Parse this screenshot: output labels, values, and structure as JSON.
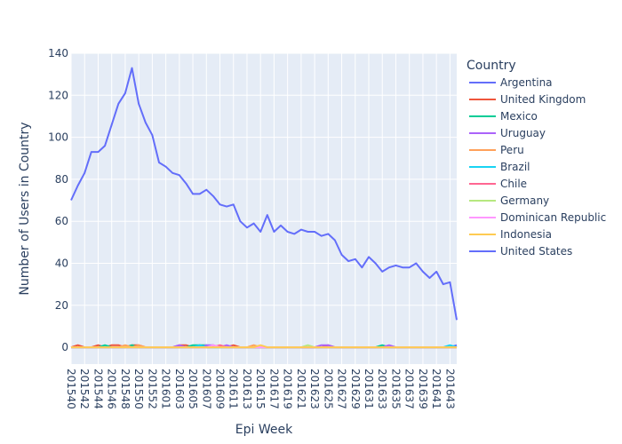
{
  "chart_data": {
    "type": "line",
    "xlabel": "Epi Week",
    "ylabel": "Number of Users in Country",
    "ylim": [
      -8,
      140
    ],
    "yticks": [
      0,
      20,
      40,
      60,
      80,
      100,
      120,
      140
    ],
    "grid": true,
    "legend_title": "Country",
    "legend_position": "right",
    "x": [
      "201540",
      "201541",
      "201542",
      "201543",
      "201544",
      "201545",
      "201546",
      "201547",
      "201548",
      "201549",
      "201550",
      "201551",
      "201552",
      "201553",
      "201601",
      "201602",
      "201603",
      "201604",
      "201605",
      "201606",
      "201607",
      "201608",
      "201609",
      "201610",
      "201611",
      "201612",
      "201613",
      "201614",
      "201615",
      "201616",
      "201617",
      "201618",
      "201619",
      "201620",
      "201621",
      "201622",
      "201623",
      "201624",
      "201625",
      "201626",
      "201627",
      "201628",
      "201629",
      "201630",
      "201631",
      "201632",
      "201633",
      "201634",
      "201635",
      "201636",
      "201637",
      "201638",
      "201639",
      "201640",
      "201641",
      "201642",
      "201643",
      "201644"
    ],
    "xtick_labels": [
      "201540",
      "201542",
      "201544",
      "201546",
      "201548",
      "201550",
      "201552",
      "201601",
      "201603",
      "201605",
      "201607",
      "201609",
      "201611",
      "201613",
      "201615",
      "201617",
      "201619",
      "201621",
      "201623",
      "201625",
      "201627",
      "201629",
      "201631",
      "201633",
      "201635",
      "201637",
      "201639",
      "201641",
      "201643"
    ],
    "series": [
      {
        "name": "Argentina",
        "color": "#636efa",
        "values": [
          0,
          0,
          0,
          0,
          0,
          0,
          0,
          0,
          0,
          0,
          0,
          0,
          0,
          0,
          0,
          0,
          0,
          0,
          0,
          0,
          0,
          0,
          0,
          0,
          0,
          0,
          0,
          0,
          0,
          0,
          0,
          0,
          0,
          0,
          0,
          0,
          0,
          0,
          0,
          0,
          0,
          0,
          0,
          0,
          0,
          0,
          0,
          0,
          0,
          0,
          0,
          0,
          0,
          0,
          0,
          0,
          0,
          1
        ]
      },
      {
        "name": "United Kingdom",
        "color": "#EF553B",
        "values": [
          0,
          1,
          0,
          0,
          1,
          0,
          1,
          1,
          0,
          1,
          1,
          0,
          0,
          0,
          0,
          0,
          1,
          1,
          0,
          1,
          0,
          1,
          0,
          0,
          1,
          0,
          0,
          0,
          0,
          0,
          0,
          0,
          0,
          0,
          0,
          0,
          0,
          0,
          1,
          0,
          0,
          0,
          0,
          0,
          0,
          0,
          0,
          0,
          0,
          0,
          0,
          0,
          0,
          0,
          0,
          0,
          0,
          0
        ]
      },
      {
        "name": "Mexico",
        "color": "#00cc96",
        "values": [
          0,
          0,
          0,
          0,
          0,
          1,
          0,
          0,
          0,
          1,
          0,
          0,
          0,
          0,
          0,
          0,
          0,
          0,
          1,
          1,
          1,
          0,
          0,
          0,
          0,
          0,
          0,
          0,
          0,
          0,
          0,
          0,
          0,
          0,
          0,
          0,
          0,
          0,
          0,
          0,
          0,
          0,
          0,
          0,
          0,
          0,
          1,
          0,
          0,
          0,
          0,
          0,
          0,
          0,
          0,
          0,
          0,
          0
        ]
      },
      {
        "name": "Uruguay",
        "color": "#ab63fa",
        "values": [
          0,
          0,
          0,
          0,
          0,
          0,
          0,
          0,
          0,
          0,
          0,
          0,
          0,
          0,
          0,
          0,
          1,
          0,
          0,
          0,
          1,
          1,
          0,
          1,
          0,
          0,
          0,
          0,
          0,
          0,
          0,
          0,
          0,
          0,
          0,
          0,
          0,
          1,
          1,
          0,
          0,
          0,
          0,
          0,
          0,
          0,
          0,
          1,
          0,
          0,
          0,
          0,
          0,
          0,
          0,
          0,
          0,
          0
        ]
      },
      {
        "name": "Peru",
        "color": "#FFA15A",
        "values": [
          0,
          0,
          0,
          0,
          0,
          0,
          0,
          0,
          1,
          0,
          1,
          0,
          0,
          0,
          0,
          0,
          0,
          0,
          0,
          0,
          0,
          0,
          1,
          0,
          0,
          0,
          0,
          1,
          0,
          0,
          0,
          0,
          0,
          0,
          0,
          0,
          0,
          0,
          0,
          0,
          0,
          0,
          0,
          0,
          0,
          0,
          0,
          0,
          0,
          0,
          0,
          0,
          0,
          0,
          0,
          0,
          0,
          0
        ]
      },
      {
        "name": "Brazil",
        "color": "#19d3f3",
        "values": [
          0,
          0,
          0,
          0,
          0,
          0,
          0,
          0,
          0,
          0,
          0,
          0,
          0,
          0,
          0,
          0,
          0,
          0,
          0,
          1,
          0,
          0,
          0,
          0,
          0,
          0,
          0,
          0,
          0,
          0,
          0,
          0,
          0,
          0,
          0,
          0,
          0,
          0,
          0,
          0,
          0,
          0,
          0,
          0,
          0,
          0,
          0,
          0,
          0,
          0,
          0,
          0,
          0,
          0,
          0,
          0,
          1,
          0
        ]
      },
      {
        "name": "Chile",
        "color": "#FF6692",
        "values": [
          0,
          0,
          0,
          0,
          0,
          0,
          0,
          0,
          0,
          0,
          0,
          0,
          0,
          0,
          0,
          0,
          0,
          0,
          0,
          0,
          0,
          0,
          1,
          0,
          0,
          0,
          0,
          0,
          0,
          0,
          0,
          0,
          0,
          0,
          0,
          0,
          0,
          0,
          0,
          0,
          0,
          0,
          0,
          0,
          0,
          0,
          0,
          0,
          0,
          0,
          0,
          0,
          0,
          0,
          0,
          0,
          0,
          0
        ]
      },
      {
        "name": "Germany",
        "color": "#B6E880",
        "values": [
          0,
          0,
          0,
          0,
          0,
          0,
          0,
          0,
          0,
          0,
          0,
          0,
          0,
          0,
          0,
          0,
          0,
          0,
          0,
          0,
          0,
          0,
          0,
          0,
          0,
          0,
          0,
          0,
          0,
          0,
          0,
          0,
          0,
          0,
          0,
          1,
          0,
          0,
          0,
          0,
          0,
          0,
          0,
          0,
          0,
          0,
          0,
          0,
          0,
          0,
          0,
          0,
          0,
          0,
          0,
          0,
          0,
          0
        ]
      },
      {
        "name": "Dominican Republic",
        "color": "#FF97FF",
        "values": [
          0,
          0,
          0,
          0,
          0,
          0,
          0,
          0,
          0,
          0,
          0,
          0,
          0,
          0,
          0,
          0,
          0,
          0,
          0,
          0,
          0,
          1,
          0,
          0,
          0,
          0,
          0,
          0,
          0,
          0,
          0,
          0,
          0,
          0,
          0,
          0,
          0,
          0,
          0,
          0,
          0,
          0,
          0,
          0,
          0,
          0,
          0,
          0,
          0,
          0,
          0,
          0,
          0,
          0,
          0,
          0,
          0,
          0
        ]
      },
      {
        "name": "Indonesia",
        "color": "#FECB52",
        "values": [
          0,
          0,
          0,
          0,
          0,
          0,
          0,
          0,
          0,
          0,
          0,
          0,
          0,
          0,
          0,
          0,
          0,
          0,
          0,
          0,
          0,
          0,
          0,
          0,
          0,
          0,
          0,
          0,
          1,
          0,
          0,
          0,
          0,
          0,
          0,
          0,
          0,
          0,
          0,
          0,
          0,
          0,
          0,
          0,
          0,
          0,
          0,
          0,
          0,
          0,
          0,
          0,
          0,
          0,
          0,
          0,
          0,
          0
        ]
      },
      {
        "name": "United States",
        "color": "#636efa",
        "values": [
          70,
          77,
          83,
          93,
          93,
          96,
          106,
          116,
          121,
          133,
          116,
          107,
          101,
          88,
          86,
          83,
          82,
          78,
          73,
          73,
          75,
          72,
          68,
          67,
          68,
          60,
          57,
          59,
          55,
          63,
          55,
          58,
          55,
          54,
          56,
          55,
          55,
          53,
          54,
          51,
          44,
          41,
          42,
          38,
          43,
          40,
          36,
          38,
          39,
          38,
          38,
          40,
          36,
          33,
          36,
          30,
          31,
          13
        ]
      }
    ]
  }
}
